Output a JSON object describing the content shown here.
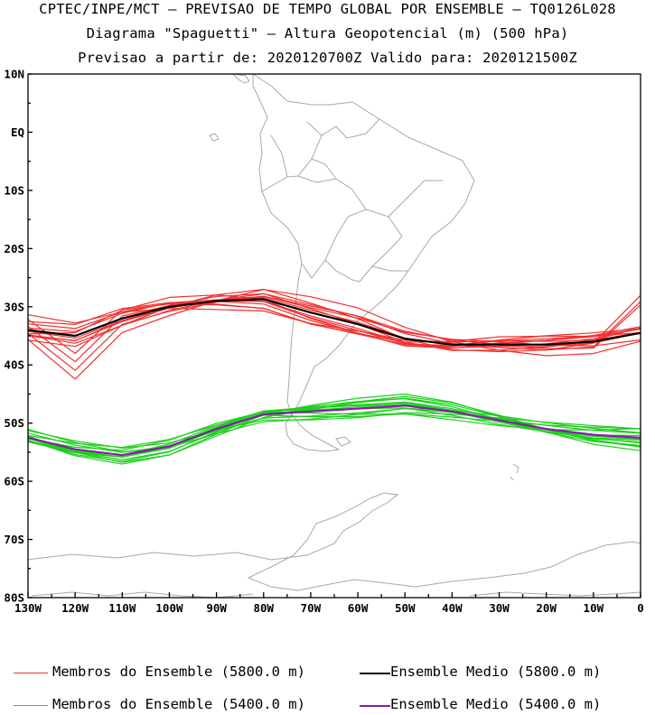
{
  "title": {
    "line1": "CPTEC/INPE/MCT – PREVISAO DE TEMPO GLOBAL POR ENSEMBLE – TQ0126L028",
    "line2": "Diagrama \"Spaguetti\" – Altura Geopotencial (m) (500 hPa)",
    "line3": "Previsao a partir de: 2020120700Z  Valido para: 2020121500Z"
  },
  "axes": {
    "lat_labels": [
      "10N",
      "EQ",
      "10S",
      "20S",
      "30S",
      "40S",
      "50S",
      "60S",
      "70S",
      "80S"
    ],
    "lat_values": [
      10,
      0,
      -10,
      -20,
      -30,
      -40,
      -50,
      -60,
      -70,
      -80
    ],
    "lon_labels": [
      "130W",
      "120W",
      "110W",
      "100W",
      "90W",
      "80W",
      "70W",
      "60W",
      "50W",
      "40W",
      "30W",
      "20W",
      "10W",
      "0"
    ],
    "lon_values": [
      -130,
      -120,
      -110,
      -100,
      -90,
      -80,
      -70,
      -60,
      -50,
      -40,
      -30,
      -20,
      -10,
      0
    ]
  },
  "colors": {
    "member_5800": "#f03030",
    "mean_5800": "#000000",
    "member_5400": "#1ecf1e",
    "mean_5400": "#8a1aa8",
    "coast": "#a8a8a8"
  },
  "legend": {
    "members_5800": "Membros do Ensemble (5800.0 m)",
    "mean_5800": "Ensemble Medio (5800.0 m)",
    "members_5400": "Membros do Ensemble (5400.0 m)",
    "mean_5400": "Ensemble Medio (5400.0 m)"
  },
  "chart_data": {
    "type": "line",
    "lon": [
      -130,
      -120,
      -110,
      -100,
      -90,
      -80,
      -70,
      -60,
      -50,
      -40,
      -30,
      -20,
      -10,
      0
    ],
    "series": [
      {
        "name": "Ensemble Medio (5800.0 m)",
        "lat": [
          -34,
          -35,
          -32,
          -30,
          -29,
          -28.7,
          -31,
          -33,
          -35.5,
          -36.5,
          -36.5,
          -36.5,
          -36,
          -34.5
        ]
      },
      {
        "name": "Ensemble Medio (5400.0 m)",
        "lat": [
          -52.5,
          -54.5,
          -55.5,
          -54,
          -51,
          -48.5,
          -48,
          -47.5,
          -47,
          -48,
          -49.5,
          -51,
          -52,
          -52.5
        ]
      },
      {
        "name": "Membros do Ensemble (5800.0 m)",
        "lat_range": [
          -41,
          -26
        ]
      },
      {
        "name": "Membros do Ensemble (5400.0 m)",
        "lat_range": [
          -57.5,
          -45.5
        ]
      }
    ]
  }
}
